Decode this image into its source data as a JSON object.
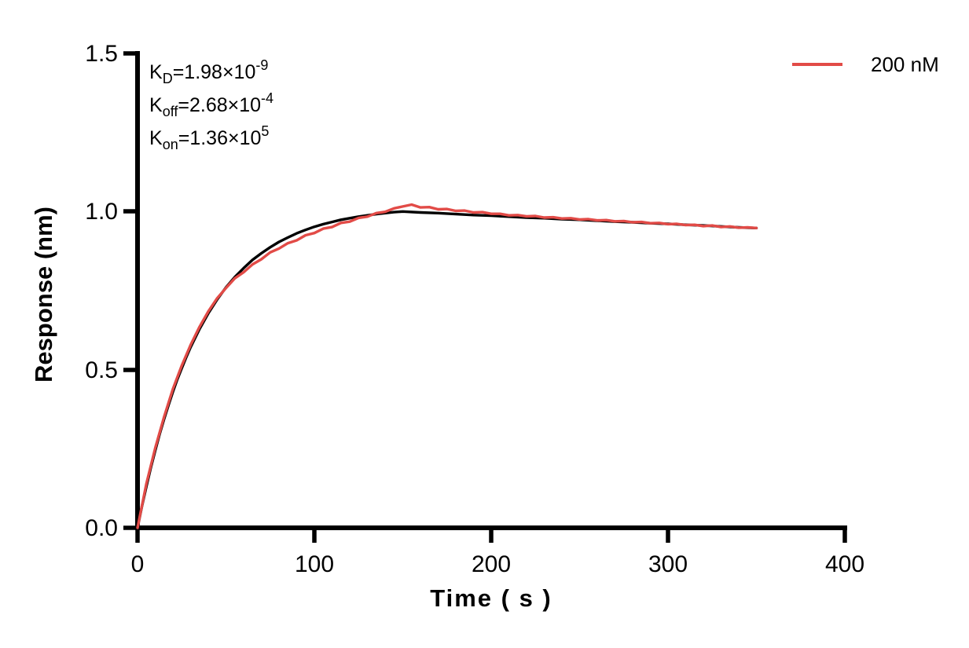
{
  "figure": {
    "background": "#FFFFFF",
    "axis_color": "#000000"
  },
  "chart_data": {
    "type": "line",
    "title": "",
    "xlabel": "Time ( s )",
    "ylabel": "Response (nm)",
    "xlim": [
      0,
      400
    ],
    "ylim": [
      0,
      1.5
    ],
    "grid": false,
    "xticks": [
      {
        "v": 0,
        "label": "0"
      },
      {
        "v": 100,
        "label": "100"
      },
      {
        "v": 200,
        "label": "200"
      },
      {
        "v": 300,
        "label": "300"
      },
      {
        "v": 400,
        "label": "400"
      }
    ],
    "yticks": [
      {
        "v": 0,
        "label": "0.0"
      },
      {
        "v": 0.5,
        "label": "0.5"
      },
      {
        "v": 1.0,
        "label": "1.0"
      },
      {
        "v": 1.5,
        "label": "1.5"
      }
    ],
    "legend": {
      "position": "top-right",
      "entries": [
        {
          "label": "200 nM",
          "color": "#E24B47"
        }
      ]
    },
    "annotations": [
      {
        "base": "K",
        "sub": "D",
        "mid": "=1.98×10",
        "sup": "-9"
      },
      {
        "base": "K",
        "sub": "off",
        "mid": "=2.68×10",
        "sup": "-4"
      },
      {
        "base": "K",
        "sub": "on",
        "mid": "=1.36×10",
        "sup": "5"
      }
    ],
    "series": [
      {
        "name": "fit",
        "color": "#000000",
        "width": 3.4,
        "x": [
          0,
          2.5,
          5,
          7.5,
          10,
          12.5,
          15,
          17.5,
          20,
          22.5,
          25,
          27.5,
          30,
          35,
          40,
          45,
          50,
          55,
          60,
          65,
          70,
          75,
          80,
          85,
          90,
          95,
          100,
          105,
          110,
          115,
          120,
          125,
          130,
          135,
          140,
          145,
          150,
          160,
          170,
          180,
          190,
          200,
          210,
          220,
          230,
          240,
          250,
          260,
          270,
          280,
          290,
          300,
          310,
          320,
          330,
          340,
          350
        ],
        "y": [
          0,
          0.068,
          0.131,
          0.19,
          0.244,
          0.296,
          0.344,
          0.388,
          0.43,
          0.469,
          0.505,
          0.539,
          0.571,
          0.628,
          0.678,
          0.722,
          0.76,
          0.793,
          0.821,
          0.847,
          0.868,
          0.887,
          0.904,
          0.918,
          0.931,
          0.942,
          0.952,
          0.96,
          0.967,
          0.974,
          0.979,
          0.984,
          0.988,
          0.992,
          0.995,
          0.998,
          1.0,
          0.997,
          0.995,
          0.992,
          0.989,
          0.987,
          0.984,
          0.981,
          0.979,
          0.976,
          0.974,
          0.971,
          0.968,
          0.966,
          0.963,
          0.961,
          0.958,
          0.956,
          0.953,
          0.95,
          0.948
        ]
      },
      {
        "name": "200 nM",
        "color": "#E24B47",
        "width": 3.4,
        "x": [
          0,
          5,
          10,
          15,
          20,
          25,
          30,
          35,
          40,
          45,
          50,
          55,
          60,
          65,
          70,
          75,
          80,
          85,
          90,
          95,
          100,
          105,
          110,
          115,
          120,
          125,
          130,
          135,
          140,
          145,
          150,
          155,
          160,
          165,
          170,
          175,
          180,
          185,
          190,
          195,
          200,
          205,
          210,
          215,
          220,
          225,
          230,
          235,
          240,
          245,
          250,
          255,
          260,
          265,
          270,
          275,
          280,
          285,
          290,
          295,
          300,
          305,
          310,
          315,
          320,
          325,
          330,
          335,
          340,
          345,
          350
        ],
        "y": [
          0,
          0.14,
          0.252,
          0.351,
          0.439,
          0.513,
          0.578,
          0.635,
          0.684,
          0.726,
          0.758,
          0.789,
          0.808,
          0.833,
          0.849,
          0.871,
          0.883,
          0.9,
          0.909,
          0.925,
          0.932,
          0.946,
          0.951,
          0.964,
          0.968,
          0.98,
          0.984,
          0.995,
          0.999,
          1.01,
          1.016,
          1.022,
          1.013,
          1.014,
          1.007,
          1.008,
          1.002,
          1.003,
          0.997,
          0.998,
          0.993,
          0.993,
          0.988,
          0.989,
          0.985,
          0.986,
          0.981,
          0.982,
          0.978,
          0.979,
          0.975,
          0.976,
          0.972,
          0.973,
          0.969,
          0.97,
          0.966,
          0.967,
          0.963,
          0.964,
          0.96,
          0.961,
          0.957,
          0.958,
          0.954,
          0.956,
          0.951,
          0.953,
          0.949,
          0.95,
          0.948
        ]
      }
    ]
  }
}
